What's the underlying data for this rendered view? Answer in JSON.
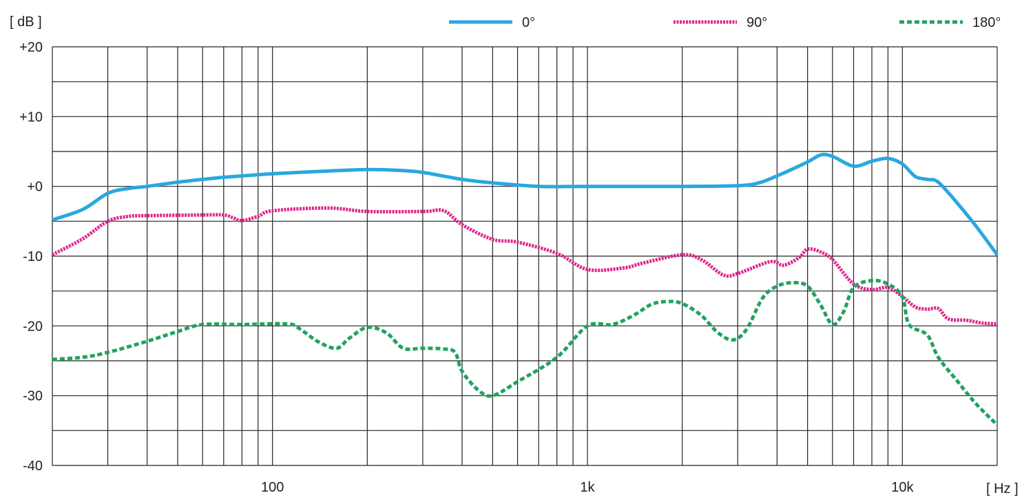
{
  "chart_data": {
    "type": "line",
    "y_unit_label": "[ dB ]",
    "x_unit_label": "[ Hz ]",
    "x_scale": "log",
    "xlim": [
      20,
      20000
    ],
    "ylim": [
      -40,
      20
    ],
    "x_tick_labels": [
      {
        "value": 100,
        "label": "100"
      },
      {
        "value": 1000,
        "label": "1k"
      },
      {
        "value": 10000,
        "label": "10k"
      }
    ],
    "y_tick_labels": [
      {
        "value": 20,
        "label": "+20"
      },
      {
        "value": 10,
        "label": "+10"
      },
      {
        "value": 0,
        "label": "+0"
      },
      {
        "value": -10,
        "label": "-10"
      },
      {
        "value": -20,
        "label": "-20"
      },
      {
        "value": -30,
        "label": "-30"
      },
      {
        "value": -40,
        "label": "-40"
      }
    ],
    "x_gridlines": [
      20,
      30,
      40,
      50,
      60,
      70,
      80,
      90,
      100,
      200,
      300,
      400,
      500,
      600,
      700,
      800,
      900,
      1000,
      2000,
      3000,
      4000,
      5000,
      6000,
      7000,
      8000,
      9000,
      10000,
      20000
    ],
    "y_gridlines": [
      20,
      15,
      10,
      5,
      0,
      -5,
      -10,
      -15,
      -20,
      -25,
      -30,
      -35,
      -40
    ],
    "grid": true,
    "legend_position": "top-right",
    "series": [
      {
        "name": "0°",
        "color": "#2aa7e0",
        "style": "solid",
        "points": [
          [
            20,
            -4.8
          ],
          [
            25,
            -3.3
          ],
          [
            30,
            -1.0
          ],
          [
            35,
            -0.3
          ],
          [
            40,
            0
          ],
          [
            50,
            0.6
          ],
          [
            60,
            1.0
          ],
          [
            70,
            1.3
          ],
          [
            80,
            1.5
          ],
          [
            100,
            1.8
          ],
          [
            150,
            2.2
          ],
          [
            200,
            2.4
          ],
          [
            250,
            2.3
          ],
          [
            300,
            2.0
          ],
          [
            400,
            1.0
          ],
          [
            500,
            0.5
          ],
          [
            700,
            0
          ],
          [
            1000,
            0
          ],
          [
            2000,
            0
          ],
          [
            3000,
            0.1
          ],
          [
            3500,
            0.5
          ],
          [
            4000,
            1.5
          ],
          [
            5000,
            3.5
          ],
          [
            5500,
            4.5
          ],
          [
            6000,
            4.3
          ],
          [
            7000,
            2.9
          ],
          [
            8000,
            3.6
          ],
          [
            9000,
            4.0
          ],
          [
            10000,
            3.2
          ],
          [
            11000,
            1.4
          ],
          [
            12000,
            1.0
          ],
          [
            13000,
            0.6
          ],
          [
            15000,
            -2.5
          ],
          [
            17000,
            -5.5
          ],
          [
            20000,
            -9.8
          ]
        ]
      },
      {
        "name": "90°",
        "color": "#e0248c",
        "style": "dashed",
        "points": [
          [
            20,
            -9.8
          ],
          [
            25,
            -7.5
          ],
          [
            30,
            -5.0
          ],
          [
            35,
            -4.3
          ],
          [
            40,
            -4.2
          ],
          [
            60,
            -4.1
          ],
          [
            70,
            -4.1
          ],
          [
            75,
            -4.5
          ],
          [
            80,
            -4.9
          ],
          [
            90,
            -4.3
          ],
          [
            100,
            -3.5
          ],
          [
            150,
            -3.1
          ],
          [
            200,
            -3.6
          ],
          [
            300,
            -3.6
          ],
          [
            350,
            -3.5
          ],
          [
            400,
            -5.5
          ],
          [
            500,
            -7.6
          ],
          [
            600,
            -8.0
          ],
          [
            800,
            -9.6
          ],
          [
            1000,
            -11.9
          ],
          [
            1300,
            -11.7
          ],
          [
            1500,
            -11.0
          ],
          [
            2000,
            -9.8
          ],
          [
            2300,
            -10.5
          ],
          [
            2700,
            -12.7
          ],
          [
            3000,
            -12.5
          ],
          [
            3800,
            -10.8
          ],
          [
            4200,
            -11.3
          ],
          [
            4700,
            -10.2
          ],
          [
            5000,
            -9.0
          ],
          [
            5500,
            -9.4
          ],
          [
            6000,
            -10.5
          ],
          [
            7000,
            -14.0
          ],
          [
            8000,
            -14.8
          ],
          [
            9000,
            -14.5
          ],
          [
            10000,
            -15.8
          ],
          [
            11000,
            -17.3
          ],
          [
            12000,
            -17.6
          ],
          [
            13000,
            -17.5
          ],
          [
            14000,
            -19.0
          ],
          [
            16000,
            -19.2
          ],
          [
            18000,
            -19.6
          ],
          [
            20000,
            -19.7
          ]
        ]
      },
      {
        "name": "180°",
        "color": "#1fa361",
        "style": "dotted",
        "points": [
          [
            20,
            -24.8
          ],
          [
            25,
            -24.5
          ],
          [
            30,
            -23.8
          ],
          [
            40,
            -22.2
          ],
          [
            50,
            -20.8
          ],
          [
            60,
            -19.8
          ],
          [
            80,
            -19.8
          ],
          [
            110,
            -19.7
          ],
          [
            120,
            -20.2
          ],
          [
            140,
            -22.3
          ],
          [
            160,
            -23.2
          ],
          [
            175,
            -21.8
          ],
          [
            200,
            -20.2
          ],
          [
            230,
            -21.0
          ],
          [
            260,
            -23.2
          ],
          [
            300,
            -23.2
          ],
          [
            350,
            -23.3
          ],
          [
            380,
            -23.8
          ],
          [
            400,
            -26.5
          ],
          [
            450,
            -29.2
          ],
          [
            500,
            -30.0
          ],
          [
            600,
            -28.0
          ],
          [
            800,
            -24.5
          ],
          [
            1000,
            -20.0
          ],
          [
            1200,
            -19.8
          ],
          [
            1400,
            -18.5
          ],
          [
            1600,
            -16.9
          ],
          [
            1800,
            -16.5
          ],
          [
            2000,
            -16.8
          ],
          [
            2300,
            -18.5
          ],
          [
            2600,
            -21.0
          ],
          [
            2900,
            -22.0
          ],
          [
            3200,
            -20.5
          ],
          [
            3600,
            -16.0
          ],
          [
            4000,
            -14.3
          ],
          [
            4500,
            -13.8
          ],
          [
            5000,
            -14.3
          ],
          [
            5500,
            -17.0
          ],
          [
            6000,
            -19.8
          ],
          [
            6500,
            -18.0
          ],
          [
            7000,
            -14.5
          ],
          [
            8000,
            -13.5
          ],
          [
            9000,
            -14.0
          ],
          [
            10000,
            -15.8
          ],
          [
            10500,
            -19.8
          ],
          [
            12000,
            -21.3
          ],
          [
            13000,
            -24.5
          ],
          [
            15000,
            -28.0
          ],
          [
            17000,
            -31.0
          ],
          [
            20000,
            -34.2
          ]
        ]
      }
    ]
  }
}
